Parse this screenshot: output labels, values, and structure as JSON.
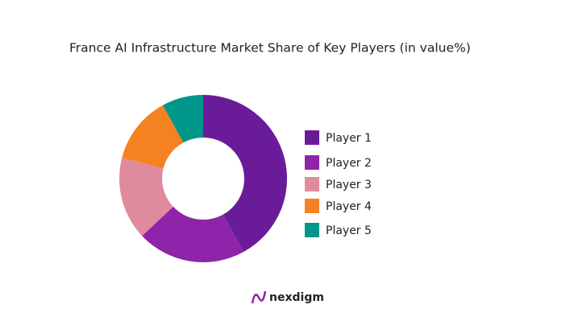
{
  "chart_data": {
    "type": "donut",
    "title": "France AI Infrastructure Market Share of Key Players (in value%)",
    "categories": [
      "Player 1",
      "Player 2",
      "Player 3",
      "Player 4",
      "Player 5"
    ],
    "values": [
      42,
      21,
      16,
      13,
      8
    ],
    "colors": [
      "#6a1b9a",
      "#8e24aa",
      "#e08a9e",
      "#f58220",
      "#00968a"
    ],
    "legend": "right"
  },
  "brand": "nexdigm"
}
